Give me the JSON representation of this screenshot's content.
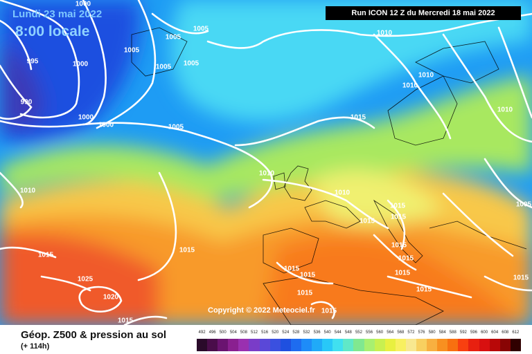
{
  "header": {
    "date": "Lundi 23 mai 2022",
    "time": "8:00 locale",
    "run": "Run ICON 12 Z du Mercredi 18 mai 2022"
  },
  "copyright": "Copyright © 2022 Meteociel.fr",
  "footer": {
    "title": "Géop. Z500 & pression au sol",
    "subtitle": "(+ 114h)"
  },
  "isobars": [
    "1000",
    "995",
    "990",
    "1005",
    "1005",
    "1005",
    "1005",
    "1000",
    "1000",
    "1000",
    "1010",
    "1005",
    "1005",
    "1010",
    "1010",
    "1010",
    "1010",
    "1010",
    "1010",
    "1015",
    "1015",
    "1015",
    "1015",
    "1015",
    "1025",
    "1020",
    "1015",
    "1015",
    "1015",
    "1015",
    "1015",
    "1015",
    "1015",
    "1015",
    "1015",
    "1015",
    "1015",
    "1005"
  ],
  "scale": {
    "labels": [
      "492",
      "496",
      "500",
      "504",
      "508",
      "512",
      "516",
      "520",
      "524",
      "528",
      "532",
      "536",
      "540",
      "544",
      "548",
      "552",
      "556",
      "560",
      "564",
      "568",
      "572",
      "576",
      "580",
      "584",
      "588",
      "592",
      "596",
      "600",
      "604",
      "608",
      "612"
    ],
    "colors": [
      "#2a0a2a",
      "#4a0d4a",
      "#6a1470",
      "#8a2090",
      "#9a30b0",
      "#7a3cc8",
      "#5a48d8",
      "#3a50e0",
      "#1f50e0",
      "#1e6cf0",
      "#1e8cf8",
      "#20aaf8",
      "#28c8f8",
      "#40e0f0",
      "#60e8c8",
      "#80e890",
      "#a8f070",
      "#c8f050",
      "#e8f040",
      "#f8f060",
      "#f8e890",
      "#f8d060",
      "#f8b040",
      "#f89020",
      "#f87010",
      "#f84010",
      "#e82010",
      "#d81010",
      "#b80808",
      "#880404",
      "#300000"
    ]
  }
}
